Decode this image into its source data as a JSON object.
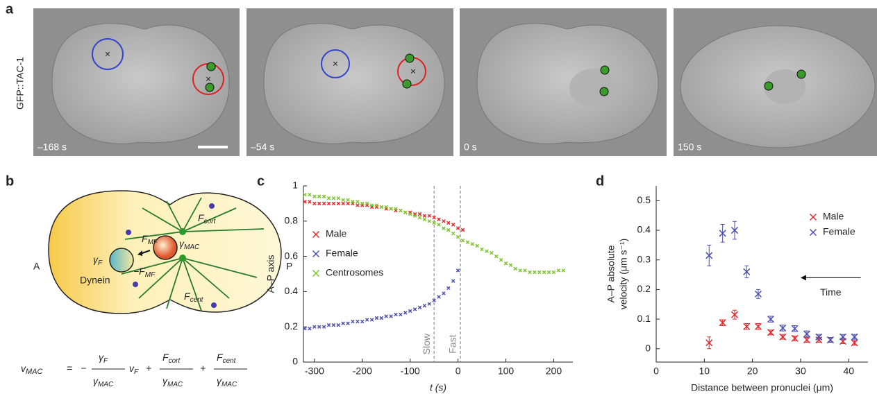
{
  "panels": {
    "a": "a",
    "b": "b",
    "c": "c",
    "d": "d"
  },
  "images": {
    "row_label": "GFP::TAC-1",
    "times": [
      "–168 s",
      "–54 s",
      "0 s",
      "150 s"
    ]
  },
  "diagram": {
    "A": "A",
    "P": "P",
    "dynein": "Dynein",
    "gamma_F": {
      "s": "γ",
      "sub": "F"
    },
    "gamma_MAC": {
      "s": "γ",
      "sub": "MAC"
    },
    "F_MF": {
      "s": "F",
      "sub": "MF"
    },
    "minus_F_MF": {
      "s": "−F",
      "sub": "MF"
    },
    "F_cort": {
      "s": "F",
      "sub": "cort"
    },
    "F_cent": {
      "s": "F",
      "sub": "cent"
    },
    "equation": {
      "lhs": {
        "s": "v",
        "sub": "MAC"
      },
      "eq": "=",
      "minus": "−",
      "t1_num": {
        "s": "γ",
        "sub": "F"
      },
      "t1_den": {
        "s": "γ",
        "sub": "MAC"
      },
      "t1_var": {
        "s": "v",
        "sub": "F"
      },
      "plus1": "+",
      "t2_num": {
        "s": "F",
        "sub": "cort"
      },
      "t2_den": {
        "s": "γ",
        "sub": "MAC"
      },
      "plus2": "+",
      "t3_num": {
        "s": "F",
        "sub": "cent"
      },
      "t3_den": {
        "s": "γ",
        "sub": "MAC"
      }
    }
  },
  "chart_data": [
    {
      "type": "scatter",
      "x_label": "t (s)",
      "y_label": "A–P axis",
      "xlim": [
        -323,
        240
      ],
      "ylim": [
        0,
        1
      ],
      "xticks": [
        -300,
        -200,
        -100,
        0,
        100,
        200
      ],
      "yticks": [
        0,
        0.2,
        0.4,
        0.6,
        0.8,
        1
      ],
      "legend": "center left",
      "annotations": [
        {
          "text": "Slow",
          "x": -50
        },
        {
          "text": "Fast",
          "x": 5
        }
      ],
      "series": [
        {
          "name": "Male",
          "color": "#e0282c",
          "x": [
            -320,
            -310,
            -300,
            -290,
            -280,
            -270,
            -260,
            -250,
            -240,
            -230,
            -220,
            -210,
            -200,
            -190,
            -180,
            -170,
            -160,
            -150,
            -140,
            -130,
            -120,
            -110,
            -100,
            -90,
            -80,
            -70,
            -60,
            -50,
            -40,
            -30,
            -20,
            -10,
            0,
            10
          ],
          "values": [
            0.91,
            0.91,
            0.9,
            0.9,
            0.9,
            0.9,
            0.9,
            0.9,
            0.9,
            0.9,
            0.9,
            0.89,
            0.89,
            0.89,
            0.88,
            0.88,
            0.88,
            0.87,
            0.87,
            0.86,
            0.86,
            0.85,
            0.85,
            0.84,
            0.84,
            0.83,
            0.83,
            0.82,
            0.81,
            0.8,
            0.79,
            0.78,
            0.76,
            0.75
          ]
        },
        {
          "name": "Female",
          "color": "#4a4fb0",
          "x": [
            -320,
            -310,
            -300,
            -290,
            -280,
            -270,
            -260,
            -250,
            -240,
            -230,
            -220,
            -210,
            -200,
            -190,
            -180,
            -170,
            -160,
            -150,
            -140,
            -130,
            -120,
            -110,
            -100,
            -90,
            -80,
            -70,
            -60,
            -50,
            -40,
            -30,
            -20,
            -10,
            0
          ],
          "values": [
            0.19,
            0.19,
            0.2,
            0.2,
            0.2,
            0.21,
            0.21,
            0.21,
            0.22,
            0.22,
            0.23,
            0.23,
            0.23,
            0.24,
            0.24,
            0.25,
            0.25,
            0.26,
            0.26,
            0.27,
            0.27,
            0.28,
            0.29,
            0.3,
            0.31,
            0.32,
            0.33,
            0.35,
            0.37,
            0.39,
            0.42,
            0.46,
            0.52
          ]
        },
        {
          "name": "Centrosomes",
          "color": "#7ac628",
          "x": [
            -320,
            -310,
            -300,
            -290,
            -280,
            -270,
            -260,
            -250,
            -240,
            -230,
            -220,
            -210,
            -200,
            -190,
            -180,
            -170,
            -160,
            -150,
            -140,
            -130,
            -120,
            -110,
            -100,
            -90,
            -80,
            -70,
            -60,
            -50,
            -40,
            -30,
            -20,
            -10,
            0,
            10,
            20,
            30,
            40,
            50,
            60,
            70,
            80,
            90,
            100,
            110,
            120,
            130,
            140,
            150,
            160,
            170,
            180,
            190,
            200,
            210,
            220
          ],
          "values": [
            0.95,
            0.95,
            0.94,
            0.94,
            0.94,
            0.93,
            0.93,
            0.93,
            0.92,
            0.92,
            0.91,
            0.91,
            0.9,
            0.9,
            0.89,
            0.89,
            0.88,
            0.88,
            0.87,
            0.87,
            0.86,
            0.85,
            0.84,
            0.83,
            0.82,
            0.81,
            0.8,
            0.79,
            0.78,
            0.76,
            0.75,
            0.73,
            0.71,
            0.69,
            0.68,
            0.67,
            0.66,
            0.64,
            0.63,
            0.62,
            0.6,
            0.58,
            0.56,
            0.55,
            0.53,
            0.52,
            0.52,
            0.51,
            0.51,
            0.51,
            0.51,
            0.51,
            0.51,
            0.52,
            0.52
          ]
        }
      ]
    },
    {
      "type": "errorbar",
      "x_label": "Distance between pronuclei (μm)",
      "y_label": [
        "A–P absolute",
        "velocity (μm s⁻¹)"
      ],
      "xlim": [
        0,
        44
      ],
      "ylim": [
        -0.045,
        0.55
      ],
      "xticks": [
        0,
        10,
        20,
        30,
        40
      ],
      "yticks": [
        0,
        0.1,
        0.2,
        0.3,
        0.4,
        0.5
      ],
      "legend": "upper right",
      "arrow": {
        "text": "Time",
        "x": [
          42.5,
          30
        ],
        "y": 0.24
      },
      "series": [
        {
          "name": "Male",
          "color": "#e0282c",
          "x": [
            11,
            13.8,
            16.3,
            18.8,
            21.2,
            23.8,
            26.3,
            28.8,
            31.3,
            33.8,
            36.2,
            38.8,
            41.2
          ],
          "values": [
            0.02,
            0.088,
            0.115,
            0.075,
            0.075,
            0.055,
            0.04,
            0.035,
            0.03,
            0.03,
            0.03,
            0.025,
            0.02
          ],
          "errors": [
            0.02,
            0.01,
            0.015,
            0.01,
            0.01,
            0.008,
            0.008,
            0.008,
            0.008,
            0.008,
            0.008,
            0.008,
            0.008
          ]
        },
        {
          "name": "Female",
          "color": "#4a4fb0",
          "x": [
            11,
            13.8,
            16.3,
            18.8,
            21.2,
            23.8,
            26.3,
            28.8,
            31.3,
            33.8,
            36.2,
            38.8,
            41.2
          ],
          "values": [
            0.315,
            0.39,
            0.4,
            0.26,
            0.185,
            0.1,
            0.07,
            0.068,
            0.05,
            0.04,
            0.03,
            0.04,
            0.04
          ],
          "errors": [
            0.035,
            0.03,
            0.03,
            0.02,
            0.015,
            0.01,
            0.01,
            0.01,
            0.01,
            0.008,
            0.008,
            0.008,
            0.008
          ]
        }
      ]
    }
  ]
}
